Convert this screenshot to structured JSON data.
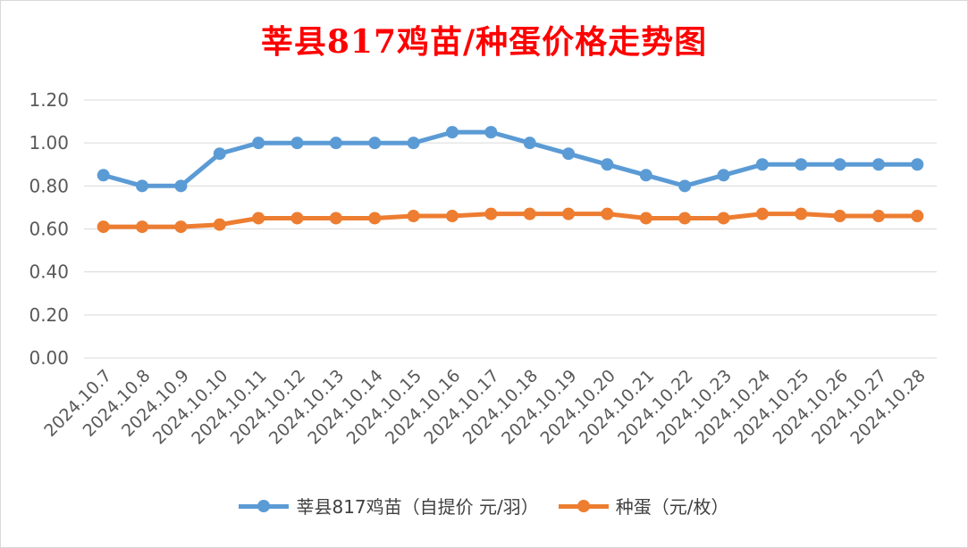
{
  "chart_data": {
    "type": "line",
    "title": "莘县817鸡苗/种蛋价格走势图",
    "categories": [
      "2024.10.7",
      "2024.10.8",
      "2024.10.9",
      "2024.10.10",
      "2024.10.11",
      "2024.10.12",
      "2024.10.13",
      "2024.10.14",
      "2024.10.15",
      "2024.10.16",
      "2024.10.17",
      "2024.10.18",
      "2024.10.19",
      "2024.10.20",
      "2024.10.21",
      "2024.10.22",
      "2024.10.23",
      "2024.10.24",
      "2024.10.25",
      "2024.10.26",
      "2024.10.27",
      "2024.10.28"
    ],
    "series": [
      {
        "name": "莘县817鸡苗（自提价 元/羽）",
        "color": "#5b9bd5",
        "values": [
          0.85,
          0.8,
          0.8,
          0.95,
          1.0,
          1.0,
          1.0,
          1.0,
          1.0,
          1.05,
          1.05,
          1.0,
          0.95,
          0.9,
          0.85,
          0.8,
          0.85,
          0.9,
          0.9,
          0.9,
          0.9,
          0.9
        ]
      },
      {
        "name": "种蛋（元/枚）",
        "color": "#ed7d31",
        "values": [
          0.61,
          0.61,
          0.61,
          0.62,
          0.65,
          0.65,
          0.65,
          0.65,
          0.66,
          0.66,
          0.67,
          0.67,
          0.67,
          0.67,
          0.65,
          0.65,
          0.65,
          0.67,
          0.67,
          0.66,
          0.66,
          0.66
        ]
      }
    ],
    "ylim": [
      0,
      1.2
    ],
    "yticks": [
      "0.00",
      "0.20",
      "0.40",
      "0.60",
      "0.80",
      "1.00",
      "1.20"
    ],
    "grid": true,
    "legend": "bottom",
    "xlabel": "",
    "ylabel": ""
  }
}
